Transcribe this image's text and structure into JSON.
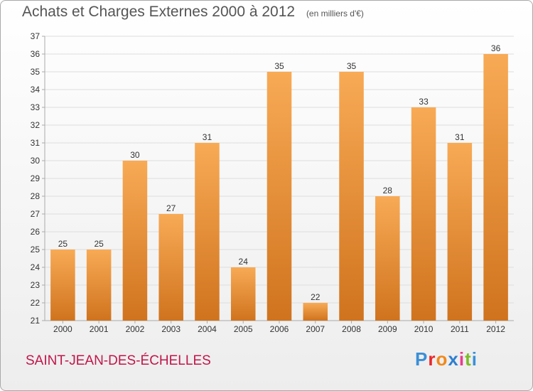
{
  "header": {
    "title": "Achats et Charges Externes 2000 à 2012",
    "unit": "(en milliers d'€)"
  },
  "footer": {
    "commune": "SAINT-JEAN-DES-ÉCHELLES",
    "logo": [
      "P",
      "r",
      "o",
      "x",
      "i",
      "t",
      "i"
    ]
  },
  "colors": {
    "bar_light": "#f8aa55",
    "bar_dark": "#d0731e",
    "title": "#555555",
    "commune": "#c0164a"
  },
  "chart_data": {
    "type": "bar",
    "title": "Achats et Charges Externes 2000 à 2012",
    "subtitle": "(en milliers d'€)",
    "categories": [
      "2000",
      "2001",
      "2002",
      "2003",
      "2004",
      "2005",
      "2006",
      "2007",
      "2008",
      "2009",
      "2010",
      "2011",
      "2012"
    ],
    "values": [
      25,
      25,
      30,
      27,
      31,
      24,
      35,
      22,
      35,
      28,
      33,
      31,
      36
    ],
    "ylim": [
      21,
      37
    ],
    "yticks": [
      21,
      22,
      23,
      24,
      25,
      26,
      27,
      28,
      29,
      30,
      31,
      32,
      33,
      34,
      35,
      36,
      37
    ],
    "grid": true,
    "legend": false
  }
}
